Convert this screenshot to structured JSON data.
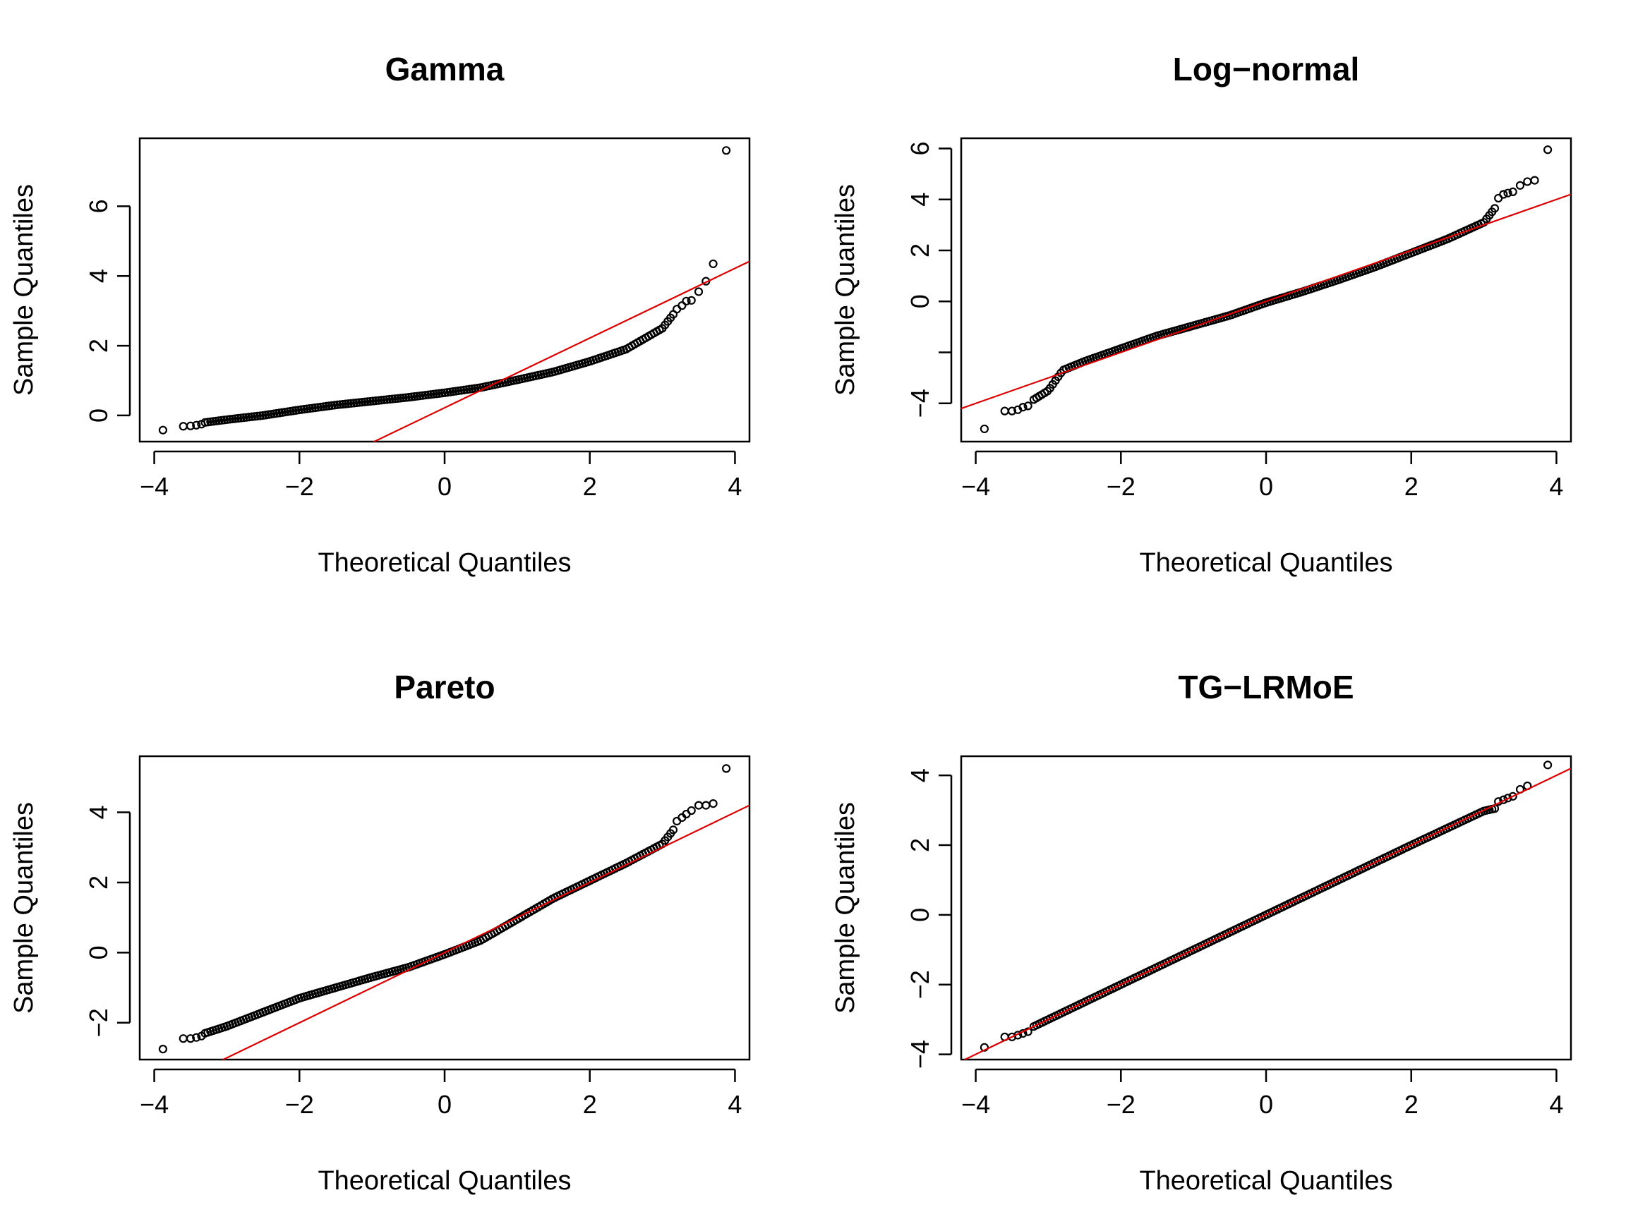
{
  "chart_data": [
    {
      "type": "scatter",
      "title": "Gamma",
      "xlabel": "Theoretical Quantiles",
      "ylabel": "Sample Quantiles",
      "xlim": [
        -4.2,
        4.2
      ],
      "ylim": [
        -0.75,
        7.95
      ],
      "xticks": [
        -4,
        -2,
        0,
        2,
        4
      ],
      "xtick_labels": [
        "−4",
        "−2",
        "0",
        "2",
        "4"
      ],
      "yticks": [
        0,
        2,
        4,
        6
      ],
      "ytick_labels": [
        "0",
        "2",
        "4",
        "6"
      ],
      "reference_line": {
        "slope": 1.0,
        "intercept": 0.22,
        "color": "#dd0000"
      },
      "quantile_curve": [
        [
          -3.3,
          -0.2
        ],
        [
          -3.0,
          -0.12
        ],
        [
          -2.5,
          0.0
        ],
        [
          -2.0,
          0.16
        ],
        [
          -1.5,
          0.3
        ],
        [
          -1.0,
          0.41
        ],
        [
          -0.5,
          0.52
        ],
        [
          0.0,
          0.65
        ],
        [
          0.5,
          0.8
        ],
        [
          1.0,
          1.02
        ],
        [
          1.5,
          1.25
        ],
        [
          2.0,
          1.55
        ],
        [
          2.5,
          1.9
        ],
        [
          2.75,
          2.2
        ],
        [
          3.0,
          2.5
        ],
        [
          3.15,
          2.9
        ]
      ],
      "tail_points": [
        [
          -3.88,
          -0.42
        ],
        [
          -3.6,
          -0.31
        ],
        [
          -3.5,
          -0.3
        ],
        [
          -3.42,
          -0.28
        ],
        [
          -3.35,
          -0.25
        ],
        [
          3.2,
          3.05
        ],
        [
          3.27,
          3.15
        ],
        [
          3.33,
          3.28
        ],
        [
          3.4,
          3.3
        ],
        [
          3.5,
          3.55
        ],
        [
          3.6,
          3.85
        ],
        [
          3.7,
          4.35
        ],
        [
          3.88,
          7.6
        ]
      ],
      "colors": {
        "points": "#000000",
        "line": "#dd0000"
      }
    },
    {
      "type": "scatter",
      "title": "Log−normal",
      "xlabel": "Theoretical Quantiles",
      "ylabel": "Sample Quantiles",
      "xlim": [
        -4.2,
        4.2
      ],
      "ylim": [
        -5.5,
        6.4
      ],
      "xticks": [
        -4,
        -2,
        0,
        2,
        4
      ],
      "xtick_labels": [
        "−4",
        "−2",
        "0",
        "2",
        "4"
      ],
      "yticks": [
        -4,
        -2,
        0,
        2,
        4,
        6
      ],
      "ytick_labels": [
        "−4",
        "",
        "0",
        "2",
        "4",
        "6"
      ],
      "reference_line": {
        "slope": 1.0,
        "intercept": 0.0,
        "color": "#dd0000"
      },
      "quantile_curve": [
        [
          -3.2,
          -3.85
        ],
        [
          -3.0,
          -3.5
        ],
        [
          -2.8,
          -2.7
        ],
        [
          -2.5,
          -2.35
        ],
        [
          -2.0,
          -1.85
        ],
        [
          -1.5,
          -1.35
        ],
        [
          -1.0,
          -0.95
        ],
        [
          -0.5,
          -0.55
        ],
        [
          0.0,
          -0.05
        ],
        [
          0.5,
          0.38
        ],
        [
          1.0,
          0.85
        ],
        [
          1.5,
          1.35
        ],
        [
          2.0,
          1.9
        ],
        [
          2.5,
          2.45
        ],
        [
          3.0,
          3.1
        ],
        [
          3.15,
          3.65
        ]
      ],
      "tail_points": [
        [
          -3.88,
          -5.0
        ],
        [
          -3.6,
          -4.3
        ],
        [
          -3.5,
          -4.3
        ],
        [
          -3.42,
          -4.25
        ],
        [
          -3.35,
          -4.15
        ],
        [
          -3.28,
          -4.1
        ],
        [
          3.2,
          4.05
        ],
        [
          3.27,
          4.2
        ],
        [
          3.33,
          4.25
        ],
        [
          3.4,
          4.3
        ],
        [
          3.5,
          4.55
        ],
        [
          3.6,
          4.7
        ],
        [
          3.7,
          4.75
        ],
        [
          3.88,
          5.95
        ]
      ],
      "colors": {
        "points": "#000000",
        "line": "#dd0000"
      }
    },
    {
      "type": "scatter",
      "title": "Pareto",
      "xlabel": "Theoretical Quantiles",
      "ylabel": "Sample Quantiles",
      "xlim": [
        -4.2,
        4.2
      ],
      "ylim": [
        -3.05,
        5.6
      ],
      "xticks": [
        -4,
        -2,
        0,
        2,
        4
      ],
      "xtick_labels": [
        "−4",
        "−2",
        "0",
        "2",
        "4"
      ],
      "yticks": [
        -2,
        0,
        2,
        4
      ],
      "ytick_labels": [
        "−2",
        "0",
        "2",
        "4"
      ],
      "reference_line": {
        "slope": 1.0,
        "intercept": 0.0,
        "color": "#dd0000"
      },
      "quantile_curve": [
        [
          -3.3,
          -2.3
        ],
        [
          -3.0,
          -2.1
        ],
        [
          -2.5,
          -1.7
        ],
        [
          -2.0,
          -1.3
        ],
        [
          -1.5,
          -1.0
        ],
        [
          -1.0,
          -0.7
        ],
        [
          -0.5,
          -0.42
        ],
        [
          0.0,
          -0.05
        ],
        [
          0.5,
          0.35
        ],
        [
          1.0,
          0.95
        ],
        [
          1.5,
          1.55
        ],
        [
          2.0,
          2.05
        ],
        [
          2.5,
          2.55
        ],
        [
          3.0,
          3.1
        ],
        [
          3.15,
          3.5
        ]
      ],
      "tail_points": [
        [
          -3.88,
          -2.75
        ],
        [
          -3.6,
          -2.45
        ],
        [
          -3.5,
          -2.45
        ],
        [
          -3.42,
          -2.42
        ],
        [
          -3.35,
          -2.38
        ],
        [
          3.2,
          3.75
        ],
        [
          3.27,
          3.85
        ],
        [
          3.33,
          3.95
        ],
        [
          3.4,
          4.05
        ],
        [
          3.5,
          4.2
        ],
        [
          3.6,
          4.2
        ],
        [
          3.7,
          4.25
        ],
        [
          3.88,
          5.25
        ]
      ],
      "colors": {
        "points": "#000000",
        "line": "#dd0000"
      }
    },
    {
      "type": "scatter",
      "title": "TG−LRMoE",
      "xlabel": "Theoretical Quantiles",
      "ylabel": "Sample Quantiles",
      "xlim": [
        -4.2,
        4.2
      ],
      "ylim": [
        -4.15,
        4.55
      ],
      "xticks": [
        -4,
        -2,
        0,
        2,
        4
      ],
      "xtick_labels": [
        "−4",
        "−2",
        "0",
        "2",
        "4"
      ],
      "yticks": [
        -4,
        -2,
        0,
        2,
        4
      ],
      "ytick_labels": [
        "−4",
        "−2",
        "0",
        "2",
        "4"
      ],
      "reference_line": {
        "slope": 1.0,
        "intercept": 0.0,
        "color": "#dd0000"
      },
      "quantile_curve": [
        [
          -3.2,
          -3.2
        ],
        [
          -3.0,
          -3.0
        ],
        [
          -2.0,
          -2.0
        ],
        [
          -1.0,
          -1.0
        ],
        [
          0.0,
          0.0
        ],
        [
          1.0,
          1.0
        ],
        [
          2.0,
          2.0
        ],
        [
          3.0,
          2.98
        ],
        [
          3.15,
          3.05
        ]
      ],
      "tail_points": [
        [
          -3.88,
          -3.8
        ],
        [
          -3.6,
          -3.5
        ],
        [
          -3.5,
          -3.5
        ],
        [
          -3.42,
          -3.45
        ],
        [
          -3.35,
          -3.4
        ],
        [
          -3.28,
          -3.35
        ],
        [
          3.2,
          3.25
        ],
        [
          3.27,
          3.3
        ],
        [
          3.33,
          3.35
        ],
        [
          3.4,
          3.4
        ],
        [
          3.5,
          3.6
        ],
        [
          3.6,
          3.7
        ],
        [
          3.88,
          4.3
        ]
      ],
      "colors": {
        "points": "#000000",
        "line": "#dd0000"
      }
    }
  ]
}
